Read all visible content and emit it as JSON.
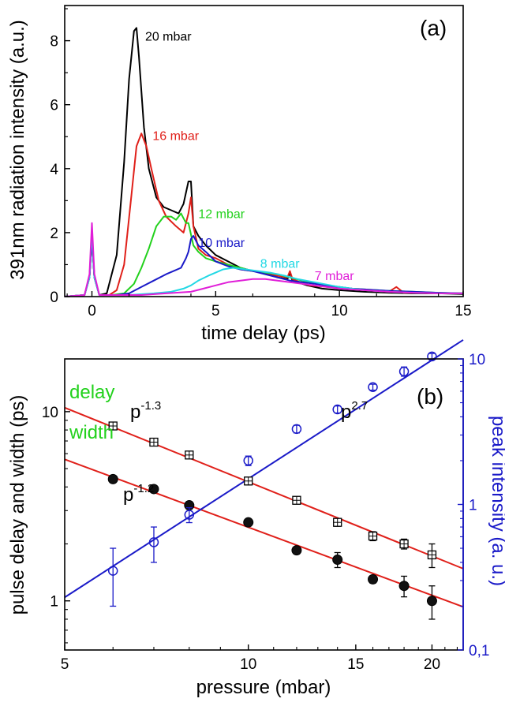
{
  "chart_data": [
    {
      "type": "line",
      "panel_label": "(a)",
      "xlabel": "time delay (ps)",
      "ylabel": "391nm radiation intensity (a.u.)",
      "xlim": [
        -1.1,
        15
      ],
      "ylim": [
        0,
        9.1
      ],
      "xticks": [
        0,
        5,
        10,
        15
      ],
      "yticks": [
        0,
        2,
        4,
        6,
        8
      ],
      "grid": false,
      "series": [
        {
          "name": "20 mbar",
          "color": "#000000",
          "x": [
            -1.1,
            -0.3,
            -0.1,
            0,
            0.1,
            0.3,
            0.6,
            1.0,
            1.3,
            1.5,
            1.7,
            1.8,
            1.9,
            2.1,
            2.3,
            2.6,
            2.9,
            3.2,
            3.5,
            3.7,
            3.9,
            4.0,
            4.1,
            4.3,
            4.6,
            5.0,
            5.5,
            6.0,
            6.5,
            7.0,
            7.5,
            7.9,
            8.0,
            8.1,
            8.3,
            8.7,
            9.3,
            10,
            11,
            12,
            13,
            14,
            15
          ],
          "y": [
            0,
            0.05,
            0.6,
            1.85,
            0.6,
            0.05,
            0.1,
            1.3,
            4.2,
            6.8,
            8.3,
            8.4,
            7.5,
            5.3,
            4.0,
            3.1,
            2.8,
            2.7,
            2.6,
            2.9,
            3.6,
            3.6,
            2.2,
            1.9,
            1.6,
            1.3,
            1.1,
            0.9,
            0.8,
            0.75,
            0.6,
            0.55,
            0.75,
            0.5,
            0.45,
            0.35,
            0.25,
            0.2,
            0.15,
            0.12,
            0.1,
            0.1,
            0.08
          ]
        },
        {
          "name": "16 mbar",
          "color": "#e0201a",
          "x": [
            -1.1,
            -0.3,
            -0.1,
            0,
            0.1,
            0.3,
            0.7,
            1.0,
            1.3,
            1.6,
            1.8,
            2.0,
            2.2,
            2.4,
            2.7,
            3.0,
            3.4,
            3.7,
            3.9,
            4.0,
            4.1,
            4.3,
            4.6,
            5.0,
            5.5,
            6.0,
            6.5,
            7.0,
            7.5,
            7.9,
            8.0,
            8.1,
            8.4,
            8.8,
            9.5,
            10.5,
            11,
            12,
            12.3,
            12.6,
            13,
            14,
            15
          ],
          "y": [
            0,
            0.05,
            0.6,
            1.9,
            0.6,
            0.05,
            0.05,
            0.2,
            1.0,
            3.2,
            4.7,
            5.1,
            4.7,
            4.0,
            3.0,
            2.5,
            2.2,
            2.0,
            2.6,
            3.1,
            2.2,
            1.5,
            1.3,
            1.2,
            1.0,
            0.85,
            0.8,
            0.75,
            0.65,
            0.6,
            0.8,
            0.55,
            0.45,
            0.35,
            0.3,
            0.25,
            0.2,
            0.15,
            0.3,
            0.12,
            0.12,
            0.1,
            0.1
          ]
        },
        {
          "name": "12 mbar",
          "color": "#22d11c",
          "x": [
            -1.1,
            -0.3,
            -0.1,
            0,
            0.1,
            0.3,
            0.8,
            1.3,
            1.7,
            2.0,
            2.3,
            2.6,
            2.9,
            3.2,
            3.4,
            3.6,
            3.8,
            3.9,
            4.1,
            4.3,
            4.6,
            5.0,
            5.5,
            6.0,
            6.5,
            7.0,
            7.5,
            8.0,
            8.5,
            9.5,
            10.5,
            12,
            13,
            14,
            15
          ],
          "y": [
            0,
            0.05,
            0.6,
            1.8,
            0.6,
            0.05,
            0.05,
            0.1,
            0.4,
            0.9,
            1.5,
            2.2,
            2.5,
            2.5,
            2.4,
            2.6,
            2.3,
            2.3,
            1.6,
            1.4,
            1.2,
            1.1,
            1.0,
            0.9,
            0.8,
            0.75,
            0.7,
            0.6,
            0.5,
            0.35,
            0.25,
            0.18,
            0.15,
            0.12,
            0.1
          ]
        },
        {
          "name": "10 mbar",
          "color": "#1a1ac8",
          "x": [
            -1.1,
            -0.3,
            -0.1,
            0,
            0.1,
            0.3,
            1.0,
            1.5,
            2.0,
            2.5,
            3.0,
            3.3,
            3.6,
            3.8,
            3.9,
            4.0,
            4.1,
            4.3,
            4.6,
            5.0,
            5.5,
            6.0,
            6.5,
            7.0,
            7.5,
            8.0,
            8.5,
            9.5,
            10.5,
            12,
            13,
            14,
            15
          ],
          "y": [
            0,
            0.05,
            0.6,
            1.8,
            0.6,
            0.05,
            0.05,
            0.1,
            0.3,
            0.5,
            0.7,
            0.8,
            0.9,
            1.2,
            1.4,
            1.8,
            1.9,
            1.6,
            1.4,
            1.1,
            0.95,
            0.85,
            0.8,
            0.7,
            0.6,
            0.5,
            0.45,
            0.35,
            0.25,
            0.18,
            0.15,
            0.12,
            0.1
          ]
        },
        {
          "name": "8 mbar",
          "color": "#22d8e4",
          "x": [
            -1.1,
            -0.3,
            -0.1,
            0,
            0.1,
            0.3,
            1.5,
            2.5,
            3.2,
            3.7,
            4.0,
            4.3,
            4.7,
            5.0,
            5.3,
            5.7,
            6.2,
            6.7,
            7.2,
            7.8,
            8.3,
            9.0,
            10,
            11,
            12,
            13,
            14,
            15
          ],
          "y": [
            0,
            0.05,
            0.6,
            2.0,
            0.6,
            0.05,
            0.05,
            0.1,
            0.15,
            0.25,
            0.35,
            0.5,
            0.65,
            0.75,
            0.85,
            0.9,
            0.85,
            0.8,
            0.75,
            0.65,
            0.55,
            0.45,
            0.3,
            0.2,
            0.15,
            0.12,
            0.1,
            0.1
          ]
        },
        {
          "name": "7 mbar",
          "color": "#e01ed8",
          "x": [
            -1.1,
            -0.3,
            -0.1,
            0,
            0.1,
            0.3,
            2.0,
            3.0,
            4.0,
            4.5,
            5.0,
            5.5,
            6.0,
            6.5,
            7.0,
            7.5,
            8.0,
            8.5,
            9.0,
            9.5,
            10,
            11,
            12,
            13,
            14,
            15
          ],
          "y": [
            0,
            0.05,
            0.7,
            2.3,
            0.7,
            0.05,
            0.05,
            0.1,
            0.15,
            0.25,
            0.35,
            0.45,
            0.5,
            0.55,
            0.55,
            0.5,
            0.45,
            0.4,
            0.35,
            0.3,
            0.25,
            0.2,
            0.15,
            0.12,
            0.1,
            0.1
          ]
        }
      ],
      "annotations": [
        {
          "text": "20 mbar",
          "x": 2.15,
          "y": 8.0,
          "color": "#000000"
        },
        {
          "text": "16 mbar",
          "x": 2.45,
          "y": 4.9,
          "color": "#e0201a"
        },
        {
          "text": "12 mbar",
          "x": 4.3,
          "y": 2.45,
          "color": "#22d11c"
        },
        {
          "text": "10 mbar",
          "x": 4.3,
          "y": 1.55,
          "color": "#1a1ac8"
        },
        {
          "text": "8 mbar",
          "x": 6.8,
          "y": 0.9,
          "color": "#22d8e4"
        },
        {
          "text": "7 mbar",
          "x": 9.0,
          "y": 0.52,
          "color": "#e01ed8"
        }
      ]
    },
    {
      "type": "scatter",
      "panel_label": "(b)",
      "xlabel": "pressure (mbar)",
      "ylabel": "pulse delay and width (ps)",
      "y2label": "peak intensity (a. u.)",
      "xscale": "log",
      "yscale": "log",
      "y2scale": "log",
      "xlim": [
        5,
        22.5
      ],
      "ylim": [
        0.55,
        19
      ],
      "y2lim": [
        0.1,
        10
      ],
      "xticks": [
        5,
        10,
        15,
        20
      ],
      "yticks": [
        1,
        10
      ],
      "y2ticks": [
        0.1,
        1,
        10
      ],
      "y2ticklabels": [
        "0,1",
        "1",
        "10"
      ],
      "grid": false,
      "series": [
        {
          "name": "delay",
          "color": "#22d11c",
          "marker": "square-cross",
          "x": [
            6,
            7,
            8,
            10,
            12,
            14,
            16,
            18,
            20
          ],
          "y": [
            8.4,
            6.9,
            5.9,
            4.3,
            3.4,
            2.6,
            2.2,
            2.0,
            1.75
          ],
          "err": [
            0.3,
            0.3,
            0.25,
            0.2,
            0.15,
            0.12,
            0.12,
            0.12,
            0.25
          ]
        },
        {
          "name": "width",
          "color": "#22d11c",
          "marker": "filled-circle",
          "x": [
            6,
            7,
            8,
            10,
            12,
            14,
            16,
            18,
            20
          ],
          "y": [
            4.4,
            3.9,
            3.2,
            2.6,
            1.85,
            1.65,
            1.3,
            1.2,
            1.0
          ],
          "err": [
            0.15,
            0.15,
            0.15,
            0.1,
            0.08,
            0.15,
            0.06,
            0.15,
            0.2
          ]
        },
        {
          "name": "peak intensity",
          "color": "#1a1ac8",
          "marker": "open-circle",
          "axis": "right",
          "x": [
            6,
            7,
            8,
            10,
            12,
            14,
            16,
            18,
            20
          ],
          "y": [
            0.35,
            0.55,
            0.85,
            2.0,
            3.3,
            4.5,
            6.4,
            8.2,
            10.4
          ],
          "err": [
            0.15,
            0.15,
            0.1,
            0.15,
            0.2,
            0.25,
            0.3,
            0.6,
            0.5
          ]
        }
      ],
      "fits": [
        {
          "label": "p-1.3",
          "color": "#e0201a",
          "axis": "left",
          "x": [
            5,
            22.5
          ],
          "y": [
            10.5,
            1.48
          ]
        },
        {
          "label": "p-1.2",
          "color": "#e0201a",
          "axis": "left",
          "x": [
            5,
            22.5
          ],
          "y": [
            5.6,
            0.93
          ]
        },
        {
          "label": "p2.7",
          "color": "#1a1ac8",
          "axis": "right",
          "x": [
            5,
            22.5
          ],
          "y": [
            0.23,
            13.5
          ]
        }
      ],
      "annotations": [
        {
          "text": "delay",
          "color": "#22d11c"
        },
        {
          "text": "width",
          "color": "#22d11c"
        },
        {
          "base": "p",
          "exp": "-1.3",
          "color": "#000000"
        },
        {
          "base": "p",
          "exp": "-1.2",
          "color": "#000000"
        },
        {
          "base": "p",
          "exp": "2.7",
          "color": "#000000"
        }
      ]
    }
  ]
}
